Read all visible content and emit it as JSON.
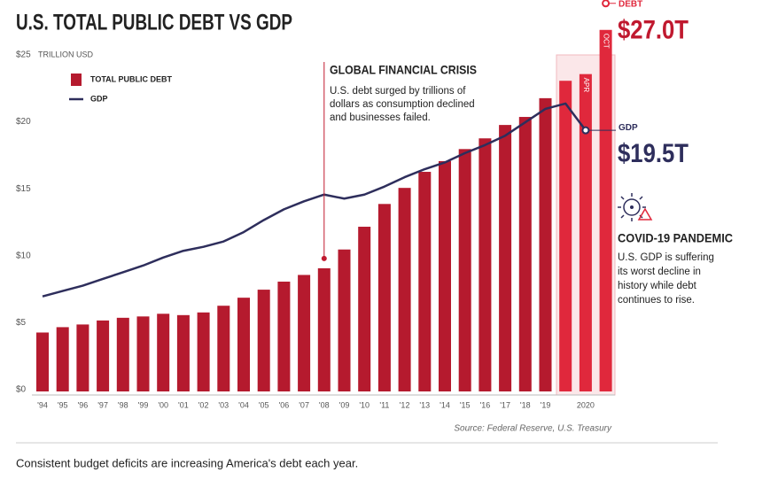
{
  "chart_data": {
    "type": "bar",
    "title": "U.S. TOTAL PUBLIC DEBT VS GDP",
    "y_unit": "TRILLION USD",
    "categories": [
      "'94",
      "'95",
      "'96",
      "'97",
      "'98",
      "'99",
      "'00",
      "'01",
      "'02",
      "'03",
      "'04",
      "'05",
      "'06",
      "'07",
      "'08",
      "'09",
      "'10",
      "'11",
      "'12",
      "'13",
      "'14",
      "'15",
      "'16",
      "'17",
      "'18",
      "'19",
      null,
      null,
      null
    ],
    "group_label": "2020",
    "bar_labels": [
      null,
      null,
      null,
      null,
      null,
      null,
      null,
      null,
      null,
      null,
      null,
      null,
      null,
      null,
      null,
      null,
      null,
      null,
      null,
      null,
      null,
      null,
      null,
      null,
      null,
      null,
      null,
      "APR",
      "OCT"
    ],
    "series": [
      {
        "name": "TOTAL PUBLIC DEBT",
        "type": "bar",
        "color": "#b51a2e",
        "colors": [
          "#b51a2e",
          "#b51a2e",
          "#b51a2e",
          "#b51a2e",
          "#b51a2e",
          "#b51a2e",
          "#b51a2e",
          "#b51a2e",
          "#b51a2e",
          "#b51a2e",
          "#b51a2e",
          "#b51a2e",
          "#b51a2e",
          "#b51a2e",
          "#b51a2e",
          "#b51a2e",
          "#b51a2e",
          "#b51a2e",
          "#b51a2e",
          "#b51a2e",
          "#b51a2e",
          "#b51a2e",
          "#b51a2e",
          "#b51a2e",
          "#b51a2e",
          "#b51a2e",
          "#e0283c",
          "#e0283c",
          "#e0283c"
        ],
        "values": [
          4.4,
          4.8,
          5.0,
          5.3,
          5.5,
          5.6,
          5.8,
          5.7,
          5.9,
          6.4,
          7.0,
          7.6,
          8.2,
          8.7,
          9.2,
          10.6,
          12.3,
          14.0,
          15.2,
          16.4,
          17.2,
          18.1,
          18.9,
          19.9,
          20.5,
          21.9,
          23.2,
          23.7,
          27.0
        ]
      },
      {
        "name": "GDP",
        "type": "line",
        "color": "#2e2e5c",
        "values": [
          7.1,
          7.5,
          7.9,
          8.4,
          8.9,
          9.4,
          10.0,
          10.5,
          10.8,
          11.2,
          11.9,
          12.8,
          13.6,
          14.2,
          14.7,
          14.4,
          14.7,
          15.3,
          16.0,
          16.6,
          17.1,
          17.8,
          18.4,
          19.1,
          20.1,
          21.1,
          21.5,
          19.5,
          null
        ]
      }
    ],
    "ylim": [
      0,
      25
    ],
    "yticks": [
      {
        "value": 0,
        "label": "$0"
      },
      {
        "value": 5,
        "label": "$5"
      },
      {
        "value": 10,
        "label": "$10"
      },
      {
        "value": 15,
        "label": "$15"
      },
      {
        "value": 20,
        "label": "$20"
      },
      {
        "value": 25,
        "label": "$25"
      }
    ],
    "callouts": [
      {
        "label": "DEBT",
        "value_label": "$27.0T"
      },
      {
        "label": "GDP",
        "value_label": "$19.5T"
      }
    ],
    "annotations": [
      {
        "title": "GLOBAL FINANCIAL CRISIS",
        "lines": [
          "U.S. debt surged by trillions of",
          "dollars as consumption declined",
          "and businesses failed."
        ]
      },
      {
        "title": "COVID-19 PANDEMIC",
        "lines": [
          "U.S. GDP is suffering",
          "its worst decline in",
          "history while debt",
          "continues to rise."
        ]
      }
    ],
    "source": "Source: Federal Reserve, U.S. Treasury",
    "caption": "Consistent budget deficits are increasing America's debt each year."
  }
}
